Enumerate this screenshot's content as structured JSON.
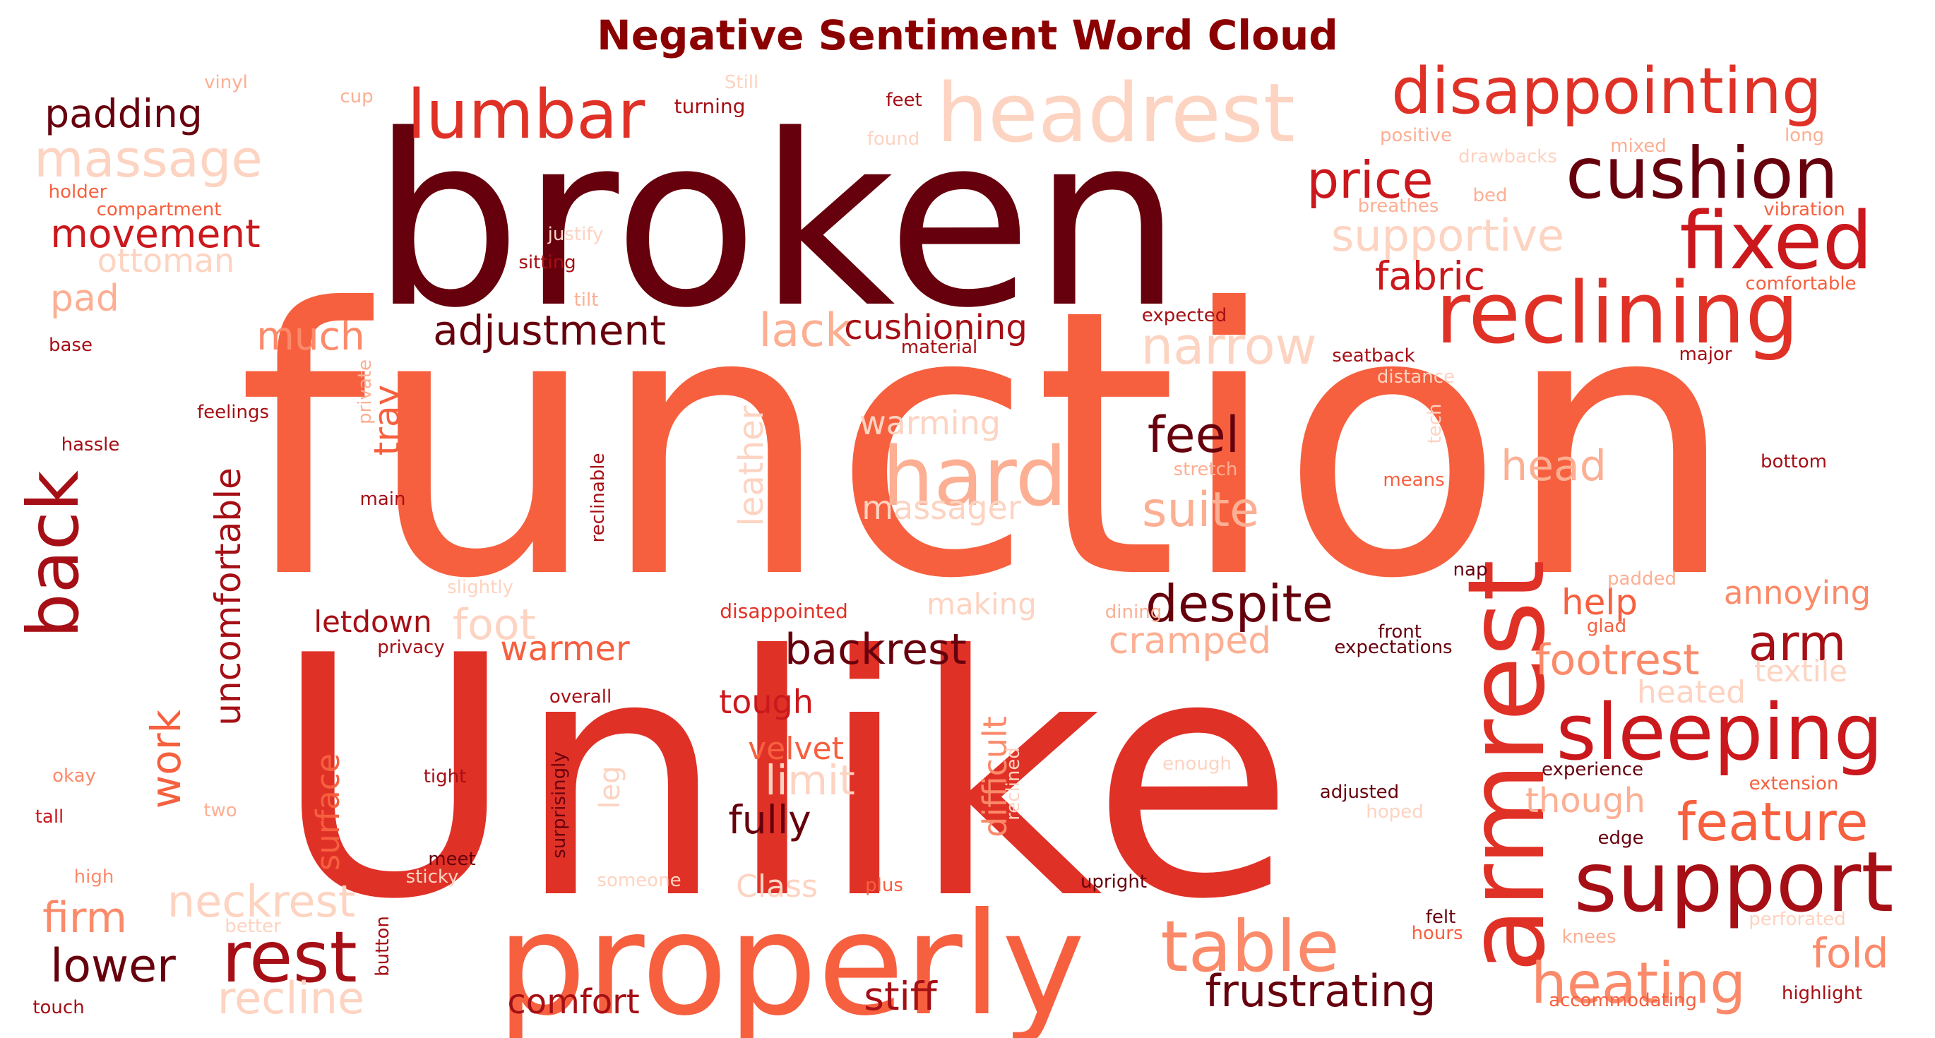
{
  "title": "Negative Sentiment Word Cloud",
  "chart_data": {
    "type": "wordcloud",
    "title": "Negative Sentiment Word Cloud",
    "colormap": "Reds",
    "colors": {
      "darkest": "#67000d",
      "dark": "#a50f15",
      "mid_dark": "#cb181d",
      "red": "#e03127",
      "mid": "#f6603f",
      "light": "#fb8a6a",
      "pale": "#fcaf93",
      "palest": "#fdd3c1",
      "title": "#8b0000"
    },
    "words": [
      {
        "text": "function",
        "weight": 1.0,
        "shade": "mid"
      },
      {
        "text": "Unlike",
        "weight": 0.98,
        "shade": "red"
      },
      {
        "text": "broken",
        "weight": 0.8,
        "shade": "darkest"
      },
      {
        "text": "properly",
        "weight": 0.44,
        "shade": "mid"
      },
      {
        "text": "armrest",
        "weight": 0.38,
        "shade": "red"
      },
      {
        "text": "headrest",
        "weight": 0.3,
        "shade": "palest"
      },
      {
        "text": "support",
        "weight": 0.3,
        "shade": "dark"
      },
      {
        "text": "reclining",
        "weight": 0.29,
        "shade": "red"
      },
      {
        "text": "fixed",
        "weight": 0.29,
        "shade": "mid_dark"
      },
      {
        "text": "sleeping",
        "weight": 0.28,
        "shade": "mid_dark"
      },
      {
        "text": "disappointing",
        "weight": 0.26,
        "shade": "red"
      },
      {
        "text": "cushion",
        "weight": 0.26,
        "shade": "darkest"
      },
      {
        "text": "lumbar",
        "weight": 0.26,
        "shade": "red"
      },
      {
        "text": "hard",
        "weight": 0.25,
        "shade": "pale"
      },
      {
        "text": "table",
        "weight": 0.24,
        "shade": "light"
      },
      {
        "text": "rest",
        "weight": 0.23,
        "shade": "dark"
      },
      {
        "text": "back",
        "weight": 0.22,
        "shade": "dark"
      },
      {
        "text": "heating",
        "weight": 0.21,
        "shade": "light"
      },
      {
        "text": "narrow",
        "weight": 0.2,
        "shade": "palest"
      },
      {
        "text": "massage",
        "weight": 0.2,
        "shade": "palest"
      },
      {
        "text": "feature",
        "weight": 0.19,
        "shade": "mid"
      },
      {
        "text": "despite",
        "weight": 0.19,
        "shade": "darkest"
      },
      {
        "text": "price",
        "weight": 0.18,
        "shade": "mid_dark"
      },
      {
        "text": "arm",
        "weight": 0.18,
        "shade": "dark"
      },
      {
        "text": "supportive",
        "weight": 0.17,
        "shade": "palest"
      },
      {
        "text": "lack",
        "weight": 0.17,
        "shade": "pale"
      },
      {
        "text": "frustrating",
        "weight": 0.16,
        "shade": "darkest"
      },
      {
        "text": "feel",
        "weight": 0.16,
        "shade": "darkest"
      },
      {
        "text": "suite",
        "weight": 0.16,
        "shade": "pale"
      },
      {
        "text": "recline",
        "weight": 0.16,
        "shade": "palest"
      },
      {
        "text": "lower",
        "weight": 0.16,
        "shade": "darkest"
      },
      {
        "text": "neckrest",
        "weight": 0.16,
        "shade": "palest"
      },
      {
        "text": "fabric",
        "weight": 0.15,
        "shade": "mid_dark"
      },
      {
        "text": "adjustment",
        "weight": 0.15,
        "shade": "darkest"
      },
      {
        "text": "backrest",
        "weight": 0.15,
        "shade": "darkest"
      },
      {
        "text": "stiff",
        "weight": 0.15,
        "shade": "dark"
      },
      {
        "text": "head",
        "weight": 0.15,
        "shade": "pale"
      },
      {
        "text": "fold",
        "weight": 0.15,
        "shade": "light"
      },
      {
        "text": "footrest",
        "weight": 0.15,
        "shade": "light"
      },
      {
        "text": "uncomfortable",
        "weight": 0.14,
        "shade": "dark"
      },
      {
        "text": "firm",
        "weight": 0.14,
        "shade": "light"
      },
      {
        "text": "foot",
        "weight": 0.14,
        "shade": "palest"
      },
      {
        "text": "fully",
        "weight": 0.14,
        "shade": "darkest"
      },
      {
        "text": "movement",
        "weight": 0.14,
        "shade": "mid_dark"
      },
      {
        "text": "padding",
        "weight": 0.14,
        "shade": "darkest"
      },
      {
        "text": "limit",
        "weight": 0.14,
        "shade": "palest"
      },
      {
        "text": "cushioning",
        "weight": 0.13,
        "shade": "dark"
      },
      {
        "text": "leather",
        "weight": 0.13,
        "shade": "palest"
      },
      {
        "text": "much",
        "weight": 0.13,
        "shade": "light"
      },
      {
        "text": "cramped",
        "weight": 0.13,
        "shade": "pale"
      },
      {
        "text": "comfort",
        "weight": 0.12,
        "shade": "dark"
      },
      {
        "text": "warmer",
        "weight": 0.12,
        "shade": "mid"
      },
      {
        "text": "help",
        "weight": 0.12,
        "shade": "mid"
      },
      {
        "text": "massager",
        "weight": 0.12,
        "shade": "palest"
      },
      {
        "text": "warming",
        "weight": 0.12,
        "shade": "palest"
      },
      {
        "text": "difficult",
        "weight": 0.12,
        "shade": "light"
      },
      {
        "text": "work",
        "weight": 0.12,
        "shade": "mid"
      },
      {
        "text": "surface",
        "weight": 0.12,
        "shade": "mid"
      },
      {
        "text": "tray",
        "weight": 0.12,
        "shade": "mid"
      },
      {
        "text": "ottoman",
        "weight": 0.12,
        "shade": "palest"
      },
      {
        "text": "pad",
        "weight": 0.12,
        "shade": "pale"
      },
      {
        "text": "annoying",
        "weight": 0.11,
        "shade": "light"
      },
      {
        "text": "tough",
        "weight": 0.11,
        "shade": "mid_dark"
      },
      {
        "text": "velvet",
        "weight": 0.11,
        "shade": "mid"
      },
      {
        "text": "Class",
        "weight": 0.11,
        "shade": "palest"
      },
      {
        "text": "though",
        "weight": 0.11,
        "shade": "pale"
      },
      {
        "text": "letdown",
        "weight": 0.11,
        "shade": "dark"
      },
      {
        "text": "making",
        "weight": 0.11,
        "shade": "palest"
      },
      {
        "text": "heated",
        "weight": 0.11,
        "shade": "palest"
      },
      {
        "text": "textile",
        "weight": 0.1,
        "shade": "palest"
      },
      {
        "text": "leg",
        "weight": 0.1,
        "shade": "palest"
      },
      {
        "text": "disappointed",
        "weight": 0.07,
        "shade": "red"
      },
      {
        "text": "vinyl",
        "weight": 0.06,
        "shade": "pale"
      },
      {
        "text": "cup",
        "weight": 0.06,
        "shade": "pale"
      },
      {
        "text": "Still",
        "weight": 0.06,
        "shade": "palest"
      },
      {
        "text": "turning",
        "weight": 0.06,
        "shade": "dark"
      },
      {
        "text": "feet",
        "weight": 0.06,
        "shade": "dark"
      },
      {
        "text": "found",
        "weight": 0.06,
        "shade": "palest"
      },
      {
        "text": "positive",
        "weight": 0.06,
        "shade": "pale"
      },
      {
        "text": "mixed",
        "weight": 0.06,
        "shade": "pale"
      },
      {
        "text": "long",
        "weight": 0.06,
        "shade": "pale"
      },
      {
        "text": "drawbacks",
        "weight": 0.06,
        "shade": "palest"
      },
      {
        "text": "holder",
        "weight": 0.06,
        "shade": "mid"
      },
      {
        "text": "compartment",
        "weight": 0.06,
        "shade": "mid"
      },
      {
        "text": "breathes",
        "weight": 0.06,
        "shade": "pale"
      },
      {
        "text": "bed",
        "weight": 0.06,
        "shade": "pale"
      },
      {
        "text": "vibration",
        "weight": 0.06,
        "shade": "mid"
      },
      {
        "text": "justify",
        "weight": 0.06,
        "shade": "palest"
      },
      {
        "text": "sitting",
        "weight": 0.06,
        "shade": "dark"
      },
      {
        "text": "comfortable",
        "weight": 0.06,
        "shade": "mid"
      },
      {
        "text": "tilt",
        "weight": 0.06,
        "shade": "pale"
      },
      {
        "text": "expected",
        "weight": 0.06,
        "shade": "dark"
      },
      {
        "text": "base",
        "weight": 0.06,
        "shade": "dark"
      },
      {
        "text": "material",
        "weight": 0.06,
        "shade": "dark"
      },
      {
        "text": "seatback",
        "weight": 0.06,
        "shade": "dark"
      },
      {
        "text": "major",
        "weight": 0.06,
        "shade": "dark"
      },
      {
        "text": "private",
        "weight": 0.06,
        "shade": "pale"
      },
      {
        "text": "distance",
        "weight": 0.06,
        "shade": "palest"
      },
      {
        "text": "feelings",
        "weight": 0.06,
        "shade": "dark"
      },
      {
        "text": "tech",
        "weight": 0.06,
        "shade": "palest"
      },
      {
        "text": "hassle",
        "weight": 0.06,
        "shade": "dark"
      },
      {
        "text": "stretch",
        "weight": 0.06,
        "shade": "pale"
      },
      {
        "text": "bottom",
        "weight": 0.06,
        "shade": "dark"
      },
      {
        "text": "means",
        "weight": 0.06,
        "shade": "mid"
      },
      {
        "text": "main",
        "weight": 0.06,
        "shade": "dark"
      },
      {
        "text": "reclinable",
        "weight": 0.06,
        "shade": "dark"
      },
      {
        "text": "slightly",
        "weight": 0.06,
        "shade": "palest"
      },
      {
        "text": "nap",
        "weight": 0.06,
        "shade": "darkest"
      },
      {
        "text": "padded",
        "weight": 0.06,
        "shade": "pale"
      },
      {
        "text": "dining",
        "weight": 0.06,
        "shade": "pale"
      },
      {
        "text": "front",
        "weight": 0.06,
        "shade": "darkest"
      },
      {
        "text": "glad",
        "weight": 0.06,
        "shade": "mid"
      },
      {
        "text": "privacy",
        "weight": 0.06,
        "shade": "dark"
      },
      {
        "text": "expectations",
        "weight": 0.06,
        "shade": "darkest"
      },
      {
        "text": "overall",
        "weight": 0.06,
        "shade": "dark"
      },
      {
        "text": "surprisingly",
        "weight": 0.06,
        "shade": "darkest"
      },
      {
        "text": "okay",
        "weight": 0.06,
        "shade": "light"
      },
      {
        "text": "tight",
        "weight": 0.06,
        "shade": "dark"
      },
      {
        "text": "enough",
        "weight": 0.06,
        "shade": "palest"
      },
      {
        "text": "experience",
        "weight": 0.06,
        "shade": "darkest"
      },
      {
        "text": "extension",
        "weight": 0.06,
        "shade": "mid"
      },
      {
        "text": "tall",
        "weight": 0.06,
        "shade": "mid_dark"
      },
      {
        "text": "two",
        "weight": 0.06,
        "shade": "pale"
      },
      {
        "text": "adjusted",
        "weight": 0.06,
        "shade": "darkest"
      },
      {
        "text": "hoped",
        "weight": 0.06,
        "shade": "palest"
      },
      {
        "text": "reclined",
        "weight": 0.06,
        "shade": "palest"
      },
      {
        "text": "meet",
        "weight": 0.06,
        "shade": "darkest"
      },
      {
        "text": "edge",
        "weight": 0.06,
        "shade": "darkest"
      },
      {
        "text": "high",
        "weight": 0.06,
        "shade": "light"
      },
      {
        "text": "sticky",
        "weight": 0.06,
        "shade": "palest"
      },
      {
        "text": "someone",
        "weight": 0.06,
        "shade": "palest"
      },
      {
        "text": "plus",
        "weight": 0.06,
        "shade": "mid"
      },
      {
        "text": "upright",
        "weight": 0.06,
        "shade": "darkest"
      },
      {
        "text": "felt",
        "weight": 0.06,
        "shade": "darkest"
      },
      {
        "text": "hours",
        "weight": 0.06,
        "shade": "mid"
      },
      {
        "text": "perforated",
        "weight": 0.06,
        "shade": "palest"
      },
      {
        "text": "better",
        "weight": 0.06,
        "shade": "palest"
      },
      {
        "text": "button",
        "weight": 0.06,
        "shade": "dark"
      },
      {
        "text": "knees",
        "weight": 0.06,
        "shade": "pale"
      },
      {
        "text": "touch",
        "weight": 0.06,
        "shade": "dark"
      },
      {
        "text": "accommodating",
        "weight": 0.06,
        "shade": "mid"
      },
      {
        "text": "highlight",
        "weight": 0.06,
        "shade": "dark"
      }
    ]
  }
}
